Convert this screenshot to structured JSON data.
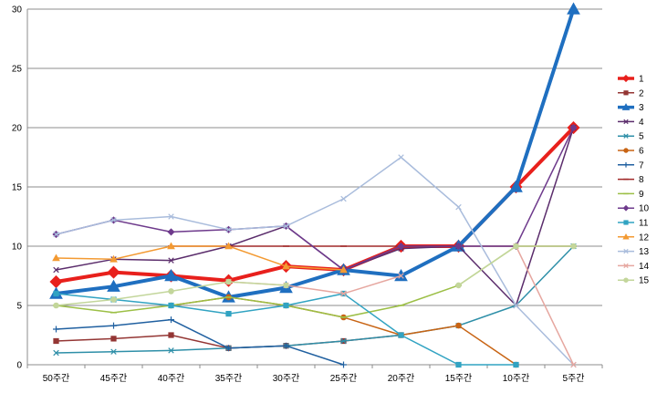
{
  "chart_data": {
    "type": "line",
    "title": "",
    "xlabel": "",
    "ylabel": "",
    "ylim": [
      0,
      30
    ],
    "yticks": [
      0,
      5,
      10,
      15,
      20,
      25,
      30
    ],
    "grid": "horizontal",
    "legend_position": "right",
    "categories": [
      "50주간",
      "45주간",
      "40주간",
      "35주간",
      "30주간",
      "25주간",
      "20주간",
      "15주간",
      "10주간",
      "5주간"
    ],
    "series": [
      {
        "name": "1",
        "color": "#e8201c",
        "marker": "diamond",
        "width": 4,
        "values": [
          7,
          7.8,
          7.5,
          7.1,
          8.3,
          8,
          10,
          10,
          15,
          20
        ]
      },
      {
        "name": "2",
        "color": "#943634",
        "marker": "square",
        "width": 1.5,
        "values": [
          2,
          2.2,
          2.5,
          1.4,
          1.6,
          2,
          2.5,
          null,
          null,
          null
        ]
      },
      {
        "name": "3",
        "color": "#1f6fc0",
        "marker": "triangle",
        "width": 4,
        "values": [
          6,
          6.6,
          7.5,
          5.7,
          6.5,
          8,
          7.5,
          10,
          15,
          30
        ]
      },
      {
        "name": "4",
        "color": "#5b2d6c",
        "marker": "x",
        "width": 1.5,
        "values": [
          8,
          8.9,
          8.8,
          10,
          11.7,
          8,
          9.8,
          10,
          5,
          20
        ]
      },
      {
        "name": "5",
        "color": "#2e8fa8",
        "marker": "x",
        "width": 1.5,
        "values": [
          1,
          1.1,
          1.2,
          1.4,
          1.6,
          2,
          2.5,
          3.3,
          5,
          10
        ]
      },
      {
        "name": "6",
        "color": "#c86414",
        "marker": "circle",
        "width": 1.5,
        "values": [
          null,
          null,
          5,
          5.7,
          5,
          4,
          2.5,
          3.3,
          0,
          null
        ]
      },
      {
        "name": "7",
        "color": "#2060a0",
        "marker": "plus",
        "width": 1.5,
        "values": [
          3,
          3.3,
          3.8,
          1.4,
          1.6,
          0,
          null,
          null,
          null,
          null
        ]
      },
      {
        "name": "8",
        "color": "#a02828",
        "marker": "dash",
        "width": 1.5,
        "values": [
          null,
          null,
          10,
          10,
          10,
          10,
          10,
          10,
          10,
          10
        ]
      },
      {
        "name": "9",
        "color": "#9cbf46",
        "marker": "dash",
        "width": 1.5,
        "values": [
          5,
          4.4,
          5,
          5.7,
          5,
          4,
          5,
          6.7,
          10,
          10
        ]
      },
      {
        "name": "10",
        "color": "#6e3a8c",
        "marker": "diamond",
        "width": 1.5,
        "values": [
          11,
          12.2,
          11.2,
          11.4,
          11.7,
          8,
          10,
          10,
          10,
          20
        ]
      },
      {
        "name": "11",
        "color": "#31a3c2",
        "marker": "square",
        "width": 1.5,
        "values": [
          6,
          5.5,
          5,
          4.3,
          5,
          6,
          2.5,
          0,
          0,
          null
        ]
      },
      {
        "name": "12",
        "color": "#f39a32",
        "marker": "triangle",
        "width": 1.5,
        "values": [
          9,
          8.9,
          10,
          10,
          8.3,
          8,
          null,
          null,
          null,
          null
        ]
      },
      {
        "name": "13",
        "color": "#a9bcdc",
        "marker": "x",
        "width": 1.5,
        "values": [
          11,
          12.2,
          12.5,
          11.4,
          11.7,
          14,
          17.5,
          13.3,
          5,
          0
        ]
      },
      {
        "name": "14",
        "color": "#e6a7a0",
        "marker": "x",
        "width": 1.5,
        "values": [
          null,
          null,
          null,
          7,
          6.7,
          6,
          7.5,
          null,
          10,
          0
        ]
      },
      {
        "name": "15",
        "color": "#c3d69b",
        "marker": "circle",
        "width": 1.5,
        "values": [
          5,
          5.5,
          6.2,
          7,
          6.7,
          null,
          null,
          6.7,
          10,
          10
        ]
      }
    ]
  }
}
